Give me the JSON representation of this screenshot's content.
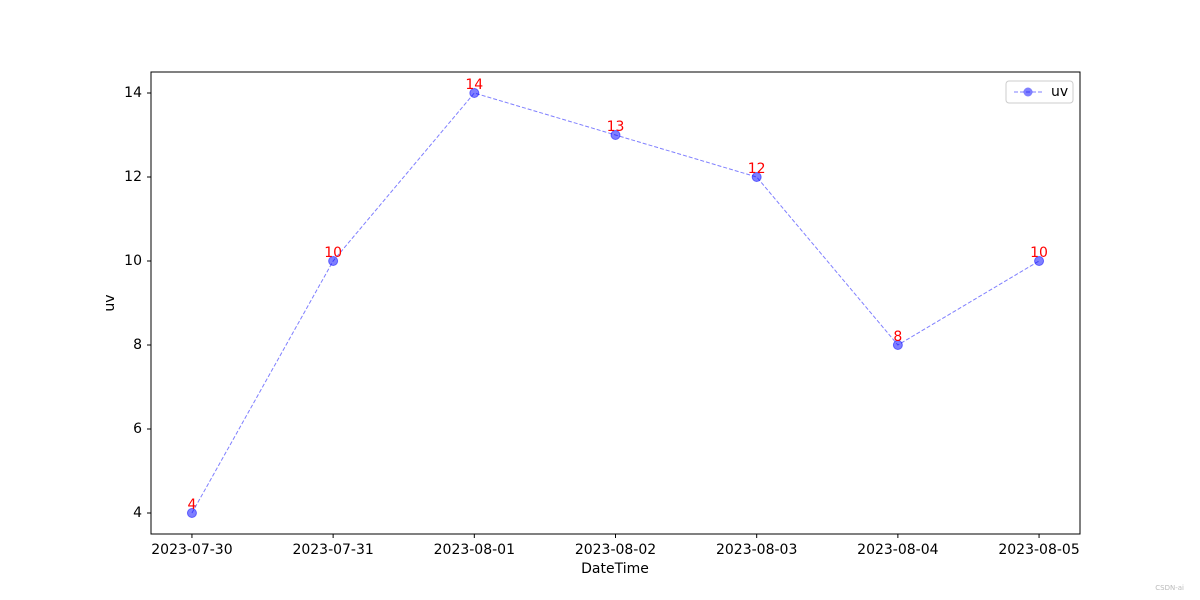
{
  "chart_data": {
    "type": "line",
    "x_label": "DateTime",
    "y_label": "uv",
    "categories": [
      "2023-07-30",
      "2023-07-31",
      "2023-08-01",
      "2023-08-02",
      "2023-08-03",
      "2023-08-04",
      "2023-08-05"
    ],
    "series": [
      {
        "name": "uv",
        "color": "#0000ff",
        "values": [
          4,
          10,
          14,
          13,
          12,
          8,
          10
        ]
      }
    ],
    "value_label_color": "#ff0000",
    "ylim": [
      3.5,
      14.5
    ],
    "yticks": [
      4,
      6,
      8,
      10,
      12,
      14
    ],
    "legend": "upper right",
    "grid": false
  },
  "watermark": "CSDN-ai"
}
